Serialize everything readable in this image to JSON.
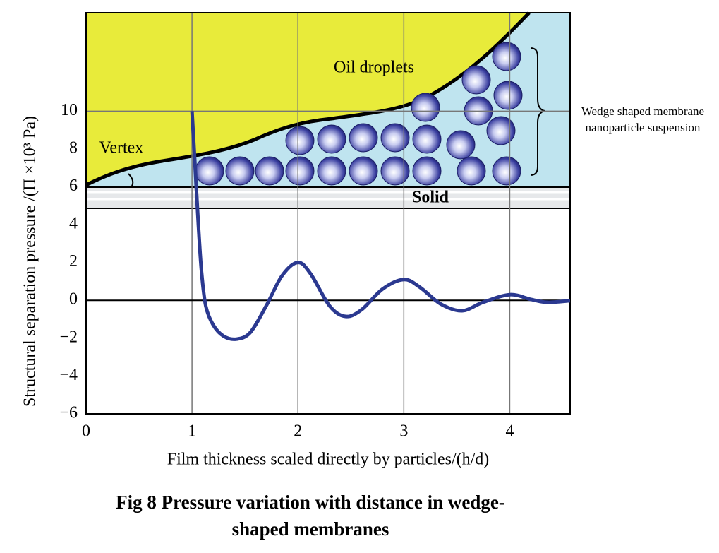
{
  "chart_data": {
    "type": "line",
    "title": "Fig 8 Pressure variation with distance in wedge-shaped membranes",
    "xlabel": "Film thickness scaled directly by particles/(h/d)",
    "ylabel": "Structural separation pressure /(Π ×10³ Pa)",
    "annotations": [
      "Oil droplets",
      "Vertex",
      "Solid",
      "Wedge shaped membrane nanoparticle suspension"
    ],
    "x": [
      1.0,
      1.03,
      1.06,
      1.09,
      1.13,
      1.2,
      1.3,
      1.42,
      1.55,
      1.7,
      1.85,
      2.0,
      2.12,
      2.3,
      2.45,
      2.6,
      2.8,
      3.0,
      3.15,
      3.35,
      3.55,
      3.75,
      4.0,
      4.2,
      4.35,
      4.57
    ],
    "series": [
      {
        "color": "#2b3990",
        "values": [
          10,
          7,
          4,
          1.5,
          -0.3,
          -1.3,
          -1.9,
          -2.05,
          -1.7,
          -0.3,
          1.3,
          2.0,
          1.4,
          -0.3,
          -0.85,
          -0.5,
          0.6,
          1.1,
          0.7,
          -0.2,
          -0.55,
          -0.1,
          0.3,
          0.05,
          -0.1,
          -0.02
        ]
      }
    ],
    "xlim": [
      0,
      4.57
    ],
    "ylim": [
      -6,
      15.2
    ],
    "xticks": [
      0,
      1,
      2,
      3,
      4
    ],
    "yticks": [
      {
        "value": -6,
        "label": "−6"
      },
      {
        "value": -4,
        "label": "−4"
      },
      {
        "value": -2,
        "label": "−2"
      },
      0,
      2,
      4,
      6,
      8,
      10
    ],
    "grid": true
  }
}
